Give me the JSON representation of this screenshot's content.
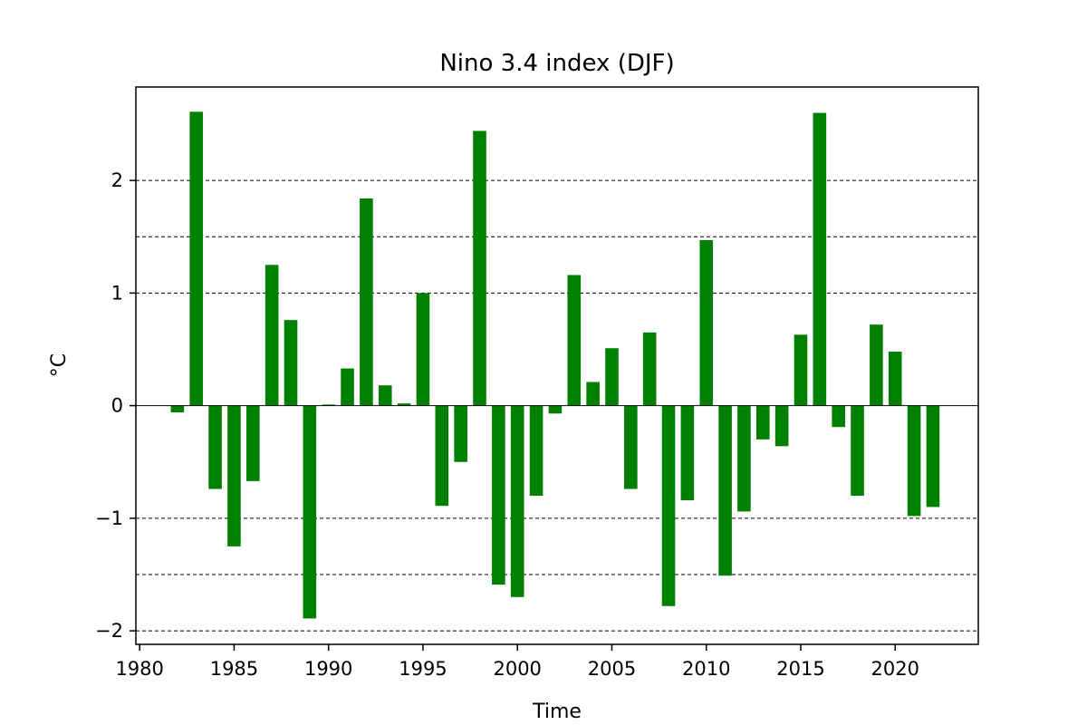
{
  "chart_data": {
    "type": "bar",
    "title": "Nino 3.4 index (DJF)",
    "xlabel": "Time",
    "ylabel": "°C",
    "xlim": [
      1979.8,
      2024.4
    ],
    "ylim": [
      -2.12,
      2.83
    ],
    "x_ticks": [
      1980,
      1985,
      1990,
      1995,
      2000,
      2005,
      2010,
      2015,
      2020
    ],
    "y_ticks": [
      -2,
      -1,
      0,
      1,
      2
    ],
    "y_tick_labels": [
      "−2",
      "−1",
      "0",
      "1",
      "2"
    ],
    "grid_lines": [
      -2,
      -1.5,
      -1,
      1,
      1.5,
      2
    ],
    "bar_color": "#008000",
    "bar_width": 0.7,
    "x": [
      1982,
      1983,
      1984,
      1985,
      1986,
      1987,
      1988,
      1989,
      1990,
      1991,
      1992,
      1993,
      1994,
      1995,
      1996,
      1997,
      1998,
      1999,
      2000,
      2001,
      2002,
      2003,
      2004,
      2005,
      2006,
      2007,
      2008,
      2009,
      2010,
      2011,
      2012,
      2013,
      2014,
      2015,
      2016,
      2017,
      2018,
      2019,
      2020,
      2021,
      2022
    ],
    "values": [
      -0.06,
      2.61,
      -0.74,
      -1.25,
      -0.67,
      1.25,
      0.76,
      -1.89,
      0.01,
      0.33,
      1.84,
      0.18,
      0.02,
      1.0,
      -0.89,
      -0.5,
      2.44,
      -1.59,
      -1.7,
      -0.8,
      -0.07,
      1.16,
      0.21,
      0.51,
      -0.74,
      0.65,
      -1.78,
      -0.84,
      1.47,
      -1.51,
      -0.94,
      -0.3,
      -0.36,
      0.63,
      2.6,
      -0.19,
      -0.8,
      0.72,
      0.48,
      -0.98,
      -0.9
    ]
  }
}
